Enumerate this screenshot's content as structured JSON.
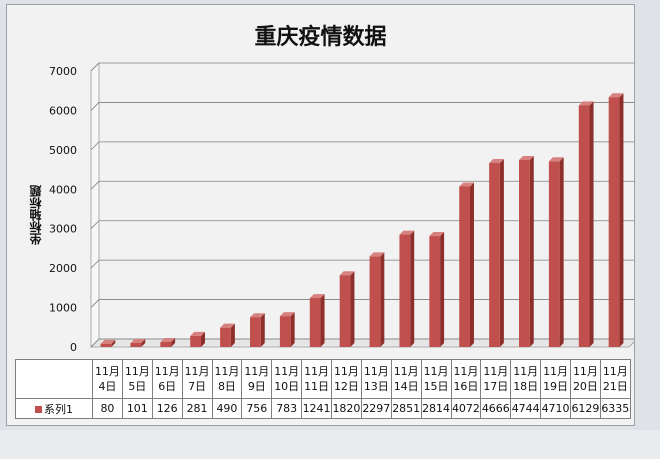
{
  "colors": {
    "bar_front": "#c0504d",
    "bar_side": "#8e2f2c",
    "bar_top": "#d8827f",
    "gridline": "#7f7f7f"
  },
  "chart_data": {
    "type": "bar",
    "title": "重庆疫情数据",
    "xlabel": "",
    "ylabel": "坐标轴标题",
    "ylim": [
      0,
      7000
    ],
    "yticks": [
      "0",
      "1000",
      "2000",
      "3000",
      "4000",
      "5000",
      "6000",
      "7000"
    ],
    "grid": true,
    "categories": [
      "11月4日",
      "11月5日",
      "11月6日",
      "11月7日",
      "11月8日",
      "11月9日",
      "11月10日",
      "11月11日",
      "11月12日",
      "11月13日",
      "11月14日",
      "11月15日",
      "11月16日",
      "11月17日",
      "11月18日",
      "11月19日",
      "11月20日",
      "11月21日"
    ],
    "category_lines": [
      [
        "11月",
        "4日"
      ],
      [
        "11月",
        "5日"
      ],
      [
        "11月",
        "6日"
      ],
      [
        "11月",
        "7日"
      ],
      [
        "11月",
        "8日"
      ],
      [
        "11月",
        "9日"
      ],
      [
        "11月",
        "10日"
      ],
      [
        "11月",
        "11日"
      ],
      [
        "11月",
        "12日"
      ],
      [
        "11月",
        "13日"
      ],
      [
        "11月",
        "14日"
      ],
      [
        "11月",
        "15日"
      ],
      [
        "11月",
        "16日"
      ],
      [
        "11月",
        "17日"
      ],
      [
        "11月",
        "18日"
      ],
      [
        "11月",
        "19日"
      ],
      [
        "11月",
        "20日"
      ],
      [
        "11月",
        "21日"
      ]
    ],
    "series": [
      {
        "name": "系列1",
        "values": [
          80,
          101,
          126,
          281,
          490,
          756,
          783,
          1241,
          1820,
          2297,
          2851,
          2814,
          4072,
          4666,
          4744,
          4710,
          6129,
          6335
        ]
      }
    ]
  }
}
